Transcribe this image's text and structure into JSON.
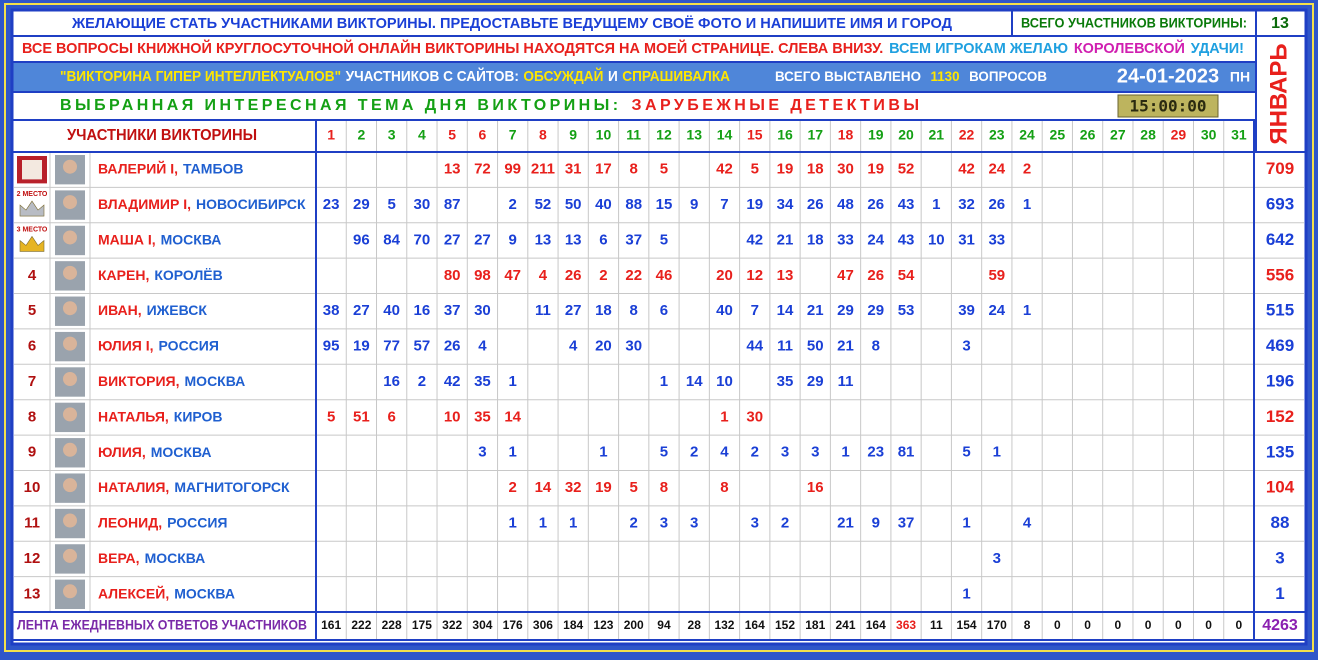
{
  "header": {
    "line1": "ЖЕЛАЮЩИЕ СТАТЬ УЧАСТНИКАМИ ВИКТОРИНЫ. ПРЕДОСТАВЬТЕ ВЕДУЩЕМУ СВОЁ ФОТО И НАПИШИТЕ ИМЯ И ГОРОД",
    "total_label": "ВСЕГО УЧАСТНИКОВ ВИКТОРИНЫ:",
    "total_participants": 13,
    "line2": [
      "ВСЕ ВОПРОСЫ КНИЖНОЙ КРУГЛОСУТОЧНОЙ ОНЛАЙН ВИКТОРИНЫ НАХОДЯТСЯ НА МОЕЙ СТРАНИЦЕ. СЛЕВА ВНИЗУ.",
      "ВСЕМ ИГРОКАМ ЖЕЛАЮ",
      "КОРОЛЕВСКОЙ",
      "УДАЧИ!"
    ],
    "line3": [
      "\"ВИКТОРИНА ГИПЕР ИНТЕЛЛЕКТУАЛОВ\"",
      "УЧАСТНИКОВ С САЙТОВ:",
      "ОБСУЖДАЙ",
      "И",
      "СПРАШИВАЛКА"
    ],
    "questions_label": "ВСЕГО ВЫСТАВЛЕНО",
    "questions_count": 1130,
    "questions_unit": "ВОПРОСОВ",
    "date": "24-01-2023",
    "weekday": "ПН",
    "topic_label": "ВЫБРАННАЯ ИНТЕРЕСНАЯ ТЕМА ДНЯ ВИКТОРИНЫ:",
    "topic": "ЗАРУБЕЖНЫЕ ДЕТЕКТИВЫ",
    "time": "15:00:00",
    "month": "ЯНВАРЬ"
  },
  "table": {
    "participants_header": "УЧАСТНИКИ ВИКТОРИНЫ",
    "days": [
      1,
      2,
      3,
      4,
      5,
      6,
      7,
      8,
      9,
      10,
      11,
      12,
      13,
      14,
      15,
      16,
      17,
      18,
      19,
      20,
      21,
      22,
      23,
      24,
      25,
      26,
      27,
      28,
      29,
      30,
      31
    ],
    "day_colors": [
      "#e8201c",
      "#14a014",
      "#14a014",
      "#14a014",
      "#e8201c",
      "#e8201c",
      "#14a014",
      "#e8201c",
      "#14a014",
      "#14a014",
      "#14a014",
      "#14a014",
      "#14a014",
      "#14a014",
      "#e8201c",
      "#14a014",
      "#14a014",
      "#e8201c",
      "#14a014",
      "#14a014",
      "#14a014",
      "#e8201c",
      "#14a014",
      "#14a014",
      "#14a014",
      "#14a014",
      "#14a014",
      "#14a014",
      "#e8201c",
      "#14a014",
      "#14a014"
    ],
    "rows": [
      {
        "name": "ВАЛЕРИЙ I,",
        "city": "ТАМБОВ",
        "color": "#e8201c",
        "total": 709,
        "values": [
          null,
          null,
          null,
          null,
          13,
          72,
          99,
          211,
          31,
          17,
          8,
          5,
          null,
          42,
          5,
          19,
          18,
          30,
          19,
          52,
          null,
          42,
          24,
          2,
          null,
          null,
          null,
          null,
          null,
          null,
          null
        ]
      },
      {
        "badge": "2 МЕСТО",
        "name": "ВЛАДИМИР I,",
        "city": "НОВОСИБИРСК",
        "color": "#1a3fd6",
        "total": 693,
        "values": [
          23,
          29,
          5,
          30,
          87,
          null,
          2,
          52,
          50,
          40,
          88,
          15,
          9,
          7,
          19,
          34,
          26,
          48,
          26,
          43,
          1,
          32,
          26,
          1,
          null,
          null,
          null,
          null,
          null,
          null,
          null
        ]
      },
      {
        "badge": "3 МЕСТО",
        "name": "МАША I,",
        "city": "МОСКВА",
        "color": "#1a3fd6",
        "total": 642,
        "values": [
          null,
          96,
          84,
          70,
          27,
          27,
          9,
          13,
          13,
          6,
          37,
          5,
          null,
          null,
          42,
          21,
          18,
          33,
          24,
          43,
          10,
          31,
          33,
          null,
          null,
          null,
          null,
          null,
          null,
          null,
          null
        ]
      },
      {
        "place": 4,
        "name": "КАРЕН,",
        "city": "КОРОЛЁВ",
        "color": "#e8201c",
        "total": 556,
        "values": [
          null,
          null,
          null,
          null,
          80,
          98,
          47,
          4,
          26,
          2,
          22,
          46,
          null,
          20,
          12,
          13,
          null,
          47,
          26,
          54,
          null,
          null,
          59,
          null,
          null,
          null,
          null,
          null,
          null,
          null,
          null
        ]
      },
      {
        "place": 5,
        "name": "ИВАН,",
        "city": "ИЖЕВСК",
        "color": "#1a3fd6",
        "total": 515,
        "values": [
          38,
          27,
          40,
          16,
          37,
          30,
          null,
          11,
          27,
          18,
          8,
          6,
          null,
          40,
          7,
          14,
          21,
          29,
          29,
          53,
          null,
          39,
          24,
          1,
          null,
          null,
          null,
          null,
          null,
          null,
          null
        ]
      },
      {
        "place": 6,
        "name": "ЮЛИЯ I,",
        "city": "РОССИЯ",
        "color": "#1a3fd6",
        "total": 469,
        "values": [
          95,
          19,
          77,
          57,
          26,
          4,
          null,
          null,
          4,
          20,
          30,
          null,
          null,
          null,
          44,
          11,
          50,
          21,
          8,
          null,
          null,
          3,
          null,
          null,
          null,
          null,
          null,
          null,
          null,
          null,
          null
        ]
      },
      {
        "place": 7,
        "name": "ВИКТОРИЯ,",
        "city": "МОСКВА",
        "color": "#1a3fd6",
        "total": 196,
        "values": [
          null,
          null,
          16,
          2,
          42,
          35,
          1,
          null,
          null,
          null,
          null,
          1,
          14,
          10,
          null,
          35,
          29,
          11,
          null,
          null,
          null,
          null,
          null,
          null,
          null,
          null,
          null,
          null,
          null,
          null,
          null
        ]
      },
      {
        "place": 8,
        "name": "НАТАЛЬЯ,",
        "city": "КИРОВ",
        "color": "#e8201c",
        "total": 152,
        "values": [
          5,
          51,
          6,
          null,
          10,
          35,
          14,
          null,
          null,
          null,
          null,
          null,
          null,
          1,
          30,
          null,
          null,
          null,
          null,
          null,
          null,
          null,
          null,
          null,
          null,
          null,
          null,
          null,
          null,
          null,
          null
        ]
      },
      {
        "place": 9,
        "name": "ЮЛИЯ,",
        "city": "МОСКВА",
        "color": "#1a3fd6",
        "total": 135,
        "values": [
          null,
          null,
          null,
          null,
          null,
          3,
          1,
          null,
          null,
          1,
          null,
          5,
          2,
          4,
          2,
          3,
          3,
          1,
          23,
          81,
          null,
          5,
          1,
          null,
          null,
          null,
          null,
          null,
          null,
          null,
          null
        ]
      },
      {
        "place": 10,
        "name": "НАТАЛИЯ,",
        "city": "МАГНИТОГОРСК",
        "color": "#e8201c",
        "total": 104,
        "values": [
          null,
          null,
          null,
          null,
          null,
          null,
          2,
          14,
          32,
          19,
          5,
          8,
          null,
          8,
          null,
          null,
          16,
          null,
          null,
          null,
          null,
          null,
          null,
          null,
          null,
          null,
          null,
          null,
          null,
          null,
          null
        ]
      },
      {
        "place": 11,
        "name": "ЛЕОНИД,",
        "city": "РОССИЯ",
        "color": "#1a3fd6",
        "total": 88,
        "values": [
          null,
          null,
          null,
          null,
          null,
          null,
          1,
          1,
          1,
          null,
          2,
          3,
          3,
          null,
          3,
          2,
          null,
          21,
          9,
          37,
          null,
          1,
          null,
          4,
          null,
          null,
          null,
          null,
          null,
          null,
          null
        ]
      },
      {
        "place": 12,
        "name": "ВЕРА,",
        "city": "МОСКВА",
        "color": "#1a3fd6",
        "total": 3,
        "values": [
          null,
          null,
          null,
          null,
          null,
          null,
          null,
          null,
          null,
          null,
          null,
          null,
          null,
          null,
          null,
          null,
          null,
          null,
          null,
          null,
          null,
          null,
          3,
          null,
          null,
          null,
          null,
          null,
          null,
          null,
          null
        ]
      },
      {
        "place": 13,
        "name": "АЛЕКСЕЙ,",
        "city": "МОСКВА",
        "color": "#1a3fd6",
        "total": 1,
        "values": [
          null,
          null,
          null,
          null,
          null,
          null,
          null,
          null,
          null,
          null,
          null,
          null,
          null,
          null,
          null,
          null,
          null,
          null,
          null,
          null,
          null,
          1,
          null,
          null,
          null,
          null,
          null,
          null,
          null,
          null,
          null
        ]
      }
    ],
    "footer_label": "ЛЕНТА ЕЖЕДНЕВНЫХ ОТВЕТОВ УЧАСТНИКОВ",
    "day_totals": [
      161,
      222,
      228,
      175,
      322,
      304,
      176,
      306,
      184,
      123,
      200,
      94,
      28,
      132,
      164,
      152,
      181,
      241,
      164,
      363,
      11,
      154,
      170,
      8,
      0,
      0,
      0,
      0,
      0,
      0,
      0
    ],
    "day_total_colors": [
      "#111",
      "#111",
      "#111",
      "#111",
      "#111",
      "#111",
      "#111",
      "#111",
      "#111",
      "#111",
      "#111",
      "#111",
      "#111",
      "#111",
      "#111",
      "#111",
      "#111",
      "#111",
      "#111",
      "#e8201c",
      "#111",
      "#111",
      "#111",
      "#111",
      "#111",
      "#111",
      "#111",
      "#111",
      "#111",
      "#111",
      "#111"
    ],
    "grand_total": 4263
  }
}
